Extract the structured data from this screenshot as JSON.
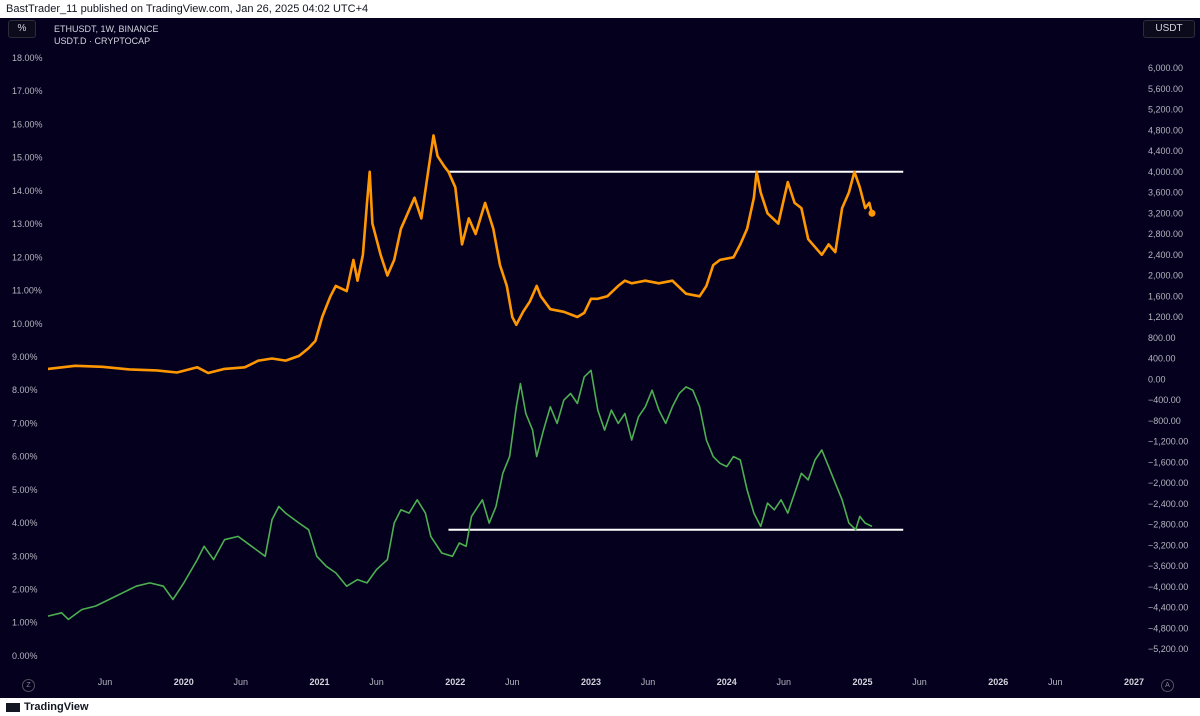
{
  "header": {
    "title": "BastTrader_11 published on TradingView.com, Jan 26, 2025 04:02 UTC+4"
  },
  "toolbar": {
    "left_unit": "%",
    "right_unit": "USDT"
  },
  "legend": {
    "line1": "ETHUSDT, 1W, BINANCE",
    "line2": "USDT.D · CRYPTOCAP"
  },
  "footer": {
    "brand": "TradingView",
    "left_button": "Z",
    "right_button": "A"
  },
  "colors": {
    "background": "#06001f",
    "eth_line": "#ff9800",
    "usdt_d_line": "#4caf50",
    "level_lines": "#ffffff",
    "axis_text": "#b2b5be"
  },
  "chart_data": {
    "type": "line",
    "x_ticks": [
      {
        "label": "Jun",
        "t": 2019.42,
        "bold": false
      },
      {
        "label": "2020",
        "t": 2020.0,
        "bold": true
      },
      {
        "label": "Jun",
        "t": 2020.42,
        "bold": false
      },
      {
        "label": "2021",
        "t": 2021.0,
        "bold": true
      },
      {
        "label": "Jun",
        "t": 2021.42,
        "bold": false
      },
      {
        "label": "2022",
        "t": 2022.0,
        "bold": true
      },
      {
        "label": "Jun",
        "t": 2022.42,
        "bold": false
      },
      {
        "label": "2023",
        "t": 2023.0,
        "bold": true
      },
      {
        "label": "Jun",
        "t": 2023.42,
        "bold": false
      },
      {
        "label": "2024",
        "t": 2024.0,
        "bold": true
      },
      {
        "label": "Jun",
        "t": 2024.42,
        "bold": false
      },
      {
        "label": "2025",
        "t": 2025.0,
        "bold": true
      },
      {
        "label": "Jun",
        "t": 2025.42,
        "bold": false
      },
      {
        "label": "2026",
        "t": 2026.0,
        "bold": true
      },
      {
        "label": "Jun",
        "t": 2026.42,
        "bold": false
      },
      {
        "label": "2027",
        "t": 2027.0,
        "bold": true
      }
    ],
    "left_axis": {
      "unit": "%",
      "ticks": [
        "18.00%",
        "17.00%",
        "16.00%",
        "15.00%",
        "14.00%",
        "13.00%",
        "12.00%",
        "11.00%",
        "10.00%",
        "9.00%",
        "8.00%",
        "7.00%",
        "6.00%",
        "5.00%",
        "4.00%",
        "3.00%",
        "2.00%",
        "1.00%",
        "0.00%"
      ]
    },
    "right_axis": {
      "unit": "USDT",
      "ticks": [
        "6,000.00",
        "5,600.00",
        "5,200.00",
        "4,800.00",
        "4,400.00",
        "4,000.00",
        "3,600.00",
        "3,200.00",
        "2,800.00",
        "2,400.00",
        "2,000.00",
        "1,600.00",
        "1,200.00",
        "800.00",
        "400.00",
        "0.00",
        "−400.00",
        "−800.00",
        "−1,200.00",
        "−1,600.00",
        "−2,000.00",
        "−2,400.00",
        "−2,800.00",
        "−3,200.00",
        "−3,600.00",
        "−4,000.00",
        "−4,400.00",
        "−4,800.00",
        "−5,200.00"
      ]
    },
    "series": [
      {
        "name": "ETHUSDT, 1W, BINANCE",
        "axis": "right",
        "color": "#ff9800",
        "points": [
          [
            2019.0,
            200
          ],
          [
            2019.2,
            260
          ],
          [
            2019.4,
            240
          ],
          [
            2019.6,
            190
          ],
          [
            2019.8,
            170
          ],
          [
            2019.95,
            130
          ],
          [
            2020.1,
            230
          ],
          [
            2020.18,
            120
          ],
          [
            2020.3,
            200
          ],
          [
            2020.45,
            230
          ],
          [
            2020.55,
            360
          ],
          [
            2020.65,
            400
          ],
          [
            2020.75,
            360
          ],
          [
            2020.85,
            450
          ],
          [
            2020.92,
            600
          ],
          [
            2020.97,
            740
          ],
          [
            2021.02,
            1200
          ],
          [
            2021.08,
            1600
          ],
          [
            2021.12,
            1800
          ],
          [
            2021.2,
            1700
          ],
          [
            2021.25,
            2300
          ],
          [
            2021.28,
            1900
          ],
          [
            2021.32,
            2400
          ],
          [
            2021.35,
            3400
          ],
          [
            2021.37,
            4000
          ],
          [
            2021.39,
            3000
          ],
          [
            2021.45,
            2400
          ],
          [
            2021.5,
            2000
          ],
          [
            2021.55,
            2300
          ],
          [
            2021.6,
            2900
          ],
          [
            2021.65,
            3200
          ],
          [
            2021.7,
            3500
          ],
          [
            2021.75,
            3100
          ],
          [
            2021.8,
            4000
          ],
          [
            2021.84,
            4700
          ],
          [
            2021.87,
            4300
          ],
          [
            2021.92,
            4100
          ],
          [
            2021.95,
            4000
          ],
          [
            2022.0,
            3700
          ],
          [
            2022.05,
            2600
          ],
          [
            2022.1,
            3100
          ],
          [
            2022.15,
            2800
          ],
          [
            2022.22,
            3400
          ],
          [
            2022.28,
            2900
          ],
          [
            2022.33,
            2200
          ],
          [
            2022.38,
            1800
          ],
          [
            2022.42,
            1200
          ],
          [
            2022.45,
            1050
          ],
          [
            2022.5,
            1300
          ],
          [
            2022.55,
            1500
          ],
          [
            2022.6,
            1800
          ],
          [
            2022.63,
            1600
          ],
          [
            2022.7,
            1350
          ],
          [
            2022.8,
            1300
          ],
          [
            2022.9,
            1200
          ],
          [
            2022.95,
            1280
          ],
          [
            2023.0,
            1550
          ],
          [
            2023.05,
            1550
          ],
          [
            2023.12,
            1600
          ],
          [
            2023.2,
            1800
          ],
          [
            2023.25,
            1900
          ],
          [
            2023.3,
            1850
          ],
          [
            2023.4,
            1900
          ],
          [
            2023.5,
            1850
          ],
          [
            2023.6,
            1900
          ],
          [
            2023.7,
            1650
          ],
          [
            2023.8,
            1600
          ],
          [
            2023.85,
            1800
          ],
          [
            2023.9,
            2200
          ],
          [
            2023.95,
            2300
          ],
          [
            2024.05,
            2350
          ],
          [
            2024.1,
            2600
          ],
          [
            2024.15,
            2900
          ],
          [
            2024.2,
            3500
          ],
          [
            2024.22,
            4000
          ],
          [
            2024.25,
            3600
          ],
          [
            2024.3,
            3200
          ],
          [
            2024.38,
            3000
          ],
          [
            2024.45,
            3800
          ],
          [
            2024.5,
            3400
          ],
          [
            2024.55,
            3300
          ],
          [
            2024.6,
            2700
          ],
          [
            2024.7,
            2400
          ],
          [
            2024.75,
            2600
          ],
          [
            2024.8,
            2450
          ],
          [
            2024.85,
            3300
          ],
          [
            2024.9,
            3600
          ],
          [
            2024.94,
            4000
          ],
          [
            2024.98,
            3700
          ],
          [
            2025.02,
            3300
          ],
          [
            2025.05,
            3400
          ],
          [
            2025.07,
            3200
          ]
        ]
      },
      {
        "name": "USDT.D · CRYPTOCAP",
        "axis": "left",
        "color": "#4caf50",
        "points": [
          [
            2019.0,
            1.2
          ],
          [
            2019.1,
            1.3
          ],
          [
            2019.15,
            1.1
          ],
          [
            2019.25,
            1.4
          ],
          [
            2019.35,
            1.5
          ],
          [
            2019.45,
            1.7
          ],
          [
            2019.55,
            1.9
          ],
          [
            2019.65,
            2.1
          ],
          [
            2019.75,
            2.2
          ],
          [
            2019.85,
            2.1
          ],
          [
            2019.92,
            1.7
          ],
          [
            2020.0,
            2.2
          ],
          [
            2020.1,
            2.9
          ],
          [
            2020.15,
            3.3
          ],
          [
            2020.22,
            2.9
          ],
          [
            2020.3,
            3.5
          ],
          [
            2020.4,
            3.6
          ],
          [
            2020.5,
            3.3
          ],
          [
            2020.6,
            3.0
          ],
          [
            2020.65,
            4.1
          ],
          [
            2020.7,
            4.5
          ],
          [
            2020.75,
            4.3
          ],
          [
            2020.85,
            4.0
          ],
          [
            2020.92,
            3.8
          ],
          [
            2020.98,
            3.0
          ],
          [
            2021.05,
            2.7
          ],
          [
            2021.12,
            2.5
          ],
          [
            2021.2,
            2.1
          ],
          [
            2021.28,
            2.3
          ],
          [
            2021.35,
            2.2
          ],
          [
            2021.42,
            2.6
          ],
          [
            2021.5,
            2.9
          ],
          [
            2021.55,
            4.0
          ],
          [
            2021.6,
            4.4
          ],
          [
            2021.66,
            4.3
          ],
          [
            2021.72,
            4.7
          ],
          [
            2021.78,
            4.3
          ],
          [
            2021.82,
            3.6
          ],
          [
            2021.9,
            3.1
          ],
          [
            2021.98,
            3.0
          ],
          [
            2022.03,
            3.4
          ],
          [
            2022.08,
            3.3
          ],
          [
            2022.12,
            4.2
          ],
          [
            2022.2,
            4.7
          ],
          [
            2022.25,
            4.0
          ],
          [
            2022.3,
            4.5
          ],
          [
            2022.35,
            5.5
          ],
          [
            2022.4,
            6.0
          ],
          [
            2022.45,
            7.5
          ],
          [
            2022.48,
            8.2
          ],
          [
            2022.52,
            7.3
          ],
          [
            2022.57,
            6.8
          ],
          [
            2022.6,
            6.0
          ],
          [
            2022.65,
            6.8
          ],
          [
            2022.7,
            7.5
          ],
          [
            2022.75,
            7.0
          ],
          [
            2022.8,
            7.7
          ],
          [
            2022.85,
            7.9
          ],
          [
            2022.9,
            7.6
          ],
          [
            2022.95,
            8.4
          ],
          [
            2023.0,
            8.6
          ],
          [
            2023.05,
            7.4
          ],
          [
            2023.1,
            6.8
          ],
          [
            2023.15,
            7.4
          ],
          [
            2023.2,
            7.0
          ],
          [
            2023.25,
            7.3
          ],
          [
            2023.3,
            6.5
          ],
          [
            2023.35,
            7.2
          ],
          [
            2023.4,
            7.5
          ],
          [
            2023.45,
            8.0
          ],
          [
            2023.5,
            7.4
          ],
          [
            2023.55,
            7.0
          ],
          [
            2023.6,
            7.5
          ],
          [
            2023.65,
            7.9
          ],
          [
            2023.7,
            8.1
          ],
          [
            2023.75,
            8.0
          ],
          [
            2023.8,
            7.5
          ],
          [
            2023.85,
            6.5
          ],
          [
            2023.9,
            6.0
          ],
          [
            2023.95,
            5.8
          ],
          [
            2024.0,
            5.7
          ],
          [
            2024.05,
            6.0
          ],
          [
            2024.1,
            5.9
          ],
          [
            2024.15,
            5.0
          ],
          [
            2024.2,
            4.3
          ],
          [
            2024.25,
            3.9
          ],
          [
            2024.3,
            4.6
          ],
          [
            2024.35,
            4.4
          ],
          [
            2024.4,
            4.7
          ],
          [
            2024.45,
            4.3
          ],
          [
            2024.5,
            4.9
          ],
          [
            2024.55,
            5.5
          ],
          [
            2024.6,
            5.3
          ],
          [
            2024.65,
            5.9
          ],
          [
            2024.7,
            6.2
          ],
          [
            2024.75,
            5.7
          ],
          [
            2024.8,
            5.2
          ],
          [
            2024.85,
            4.7
          ],
          [
            2024.9,
            4.0
          ],
          [
            2024.95,
            3.8
          ],
          [
            2024.98,
            4.2
          ],
          [
            2025.02,
            4.0
          ],
          [
            2025.07,
            3.9
          ]
        ]
      }
    ],
    "horizontal_levels": [
      {
        "axis": "right",
        "value": 4000,
        "from": 2021.95,
        "to": 2025.3
      },
      {
        "axis": "left",
        "value": 3.8,
        "from": 2021.95,
        "to": 2025.3
      }
    ],
    "grid": false
  }
}
